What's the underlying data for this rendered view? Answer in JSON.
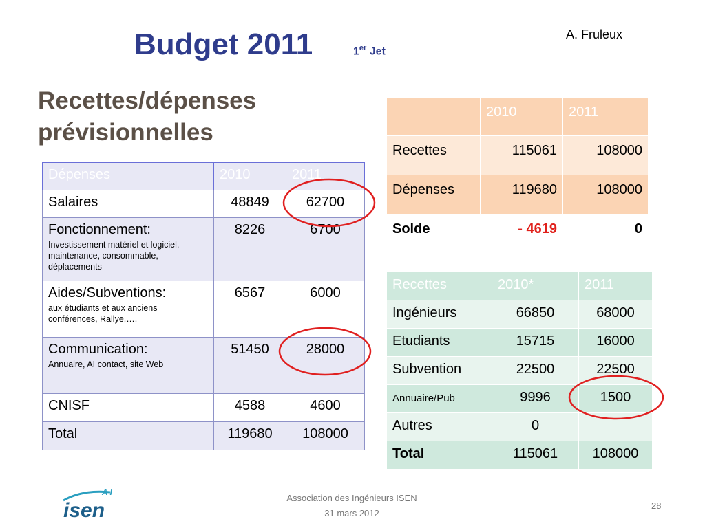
{
  "header": {
    "title": "Budget 2011",
    "edition_number": "1",
    "edition_sup": "er",
    "edition_word": "Jet",
    "author": "A. Fruleux"
  },
  "subtitle": [
    "Recettes/dépenses",
    "prévisionnelles"
  ],
  "depenses": {
    "header": [
      "Dépenses",
      "2010",
      "2011"
    ],
    "rows": [
      {
        "label": "Salaires",
        "values": [
          48849,
          62700
        ]
      },
      {
        "label": "Fonctionnement:",
        "detail": "Investissement matériel et logiciel, maintenance, consommable, déplacements",
        "values": [
          8226,
          6700
        ]
      },
      {
        "label": "Aides/Subventions:",
        "detail": "aux étudiants et aux anciens conférences, Rallye,….",
        "values": [
          6567,
          6000
        ]
      },
      {
        "label": "Communication:",
        "detail": "Annuaire, AI contact, site Web",
        "values": [
          51450,
          28000
        ]
      },
      {
        "label": "CNISF",
        "values": [
          4588,
          4600
        ]
      },
      {
        "label": "Total",
        "values": [
          119680,
          108000
        ]
      }
    ]
  },
  "solde": {
    "header": [
      "2010",
      "2011"
    ],
    "rows": [
      {
        "label": "Recettes",
        "values": [
          115061,
          108000
        ]
      },
      {
        "label": "Dépenses",
        "values": [
          119680,
          108000
        ]
      },
      {
        "label": "Solde",
        "values": [
          "- 4619",
          0
        ]
      }
    ]
  },
  "recettes": {
    "header": [
      "Recettes",
      "2010*",
      "2011"
    ],
    "rows": [
      {
        "label": "Ingénieurs",
        "values": [
          66850,
          68000
        ]
      },
      {
        "label": "Etudiants",
        "values": [
          15715,
          16000
        ]
      },
      {
        "label": "Subvention",
        "values": [
          22500,
          22500
        ]
      },
      {
        "label": "Annuaire/Pub",
        "values": [
          9996,
          1500
        ]
      },
      {
        "label": "Autres",
        "values": [
          0,
          null
        ]
      },
      {
        "label": "Total",
        "values": [
          115061,
          108000
        ]
      }
    ]
  },
  "footer": {
    "logo_top": "A I",
    "logo_main": "isen",
    "organization": "Association des Ingénieurs ISEN",
    "date": "31 mars 2012",
    "page": "28"
  }
}
